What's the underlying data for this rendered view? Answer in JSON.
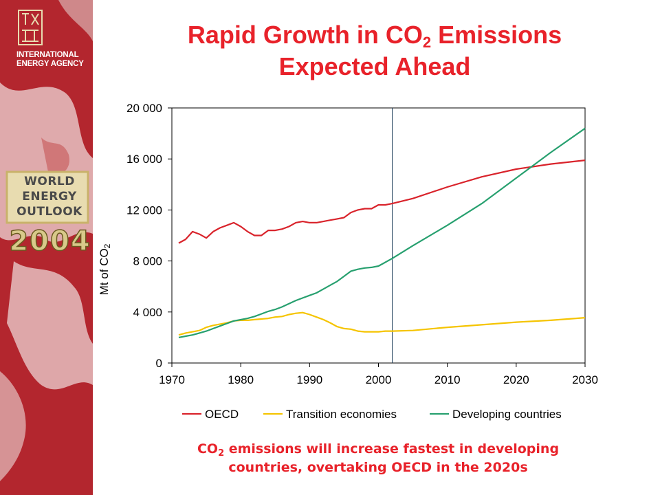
{
  "sidebar": {
    "agency_line1": "INTERNATIONAL",
    "agency_line2": "ENERGY AGENCY",
    "weo_line1": "WORLD",
    "weo_line2": "ENERGY",
    "weo_line3": "OUTLOOK",
    "weo_year": "2004",
    "colors": {
      "background": "#b3262e",
      "accent": "#e8dcb0"
    }
  },
  "title": {
    "line1_pre": "Rapid Growth in CO",
    "line1_sub": "2",
    "line1_post": " Emissions",
    "line2": "Expected Ahead"
  },
  "caption": {
    "line1_pre": "CO",
    "line1_sub": "2",
    "line1_post": " emissions will increase fastest in developing",
    "line2": "countries, overtaking OECD in the 2020s"
  },
  "chart_data": {
    "type": "line",
    "ylabel": "Mt of CO",
    "ylabel_sub": "2",
    "xlim": [
      1970,
      2030
    ],
    "ylim": [
      0,
      20000
    ],
    "x_ticks": [
      1970,
      1980,
      1990,
      2000,
      2010,
      2020,
      2030
    ],
    "x_tick_labels": [
      "1970",
      "1980",
      "1990",
      "2000",
      "2010",
      "2020",
      "2030"
    ],
    "y_ticks": [
      0,
      4000,
      8000,
      12000,
      16000,
      20000
    ],
    "y_tick_labels": [
      "0",
      "4 000",
      "8 000",
      "12 000",
      "16 000",
      "20 000"
    ],
    "reference_line_x": 2002,
    "grid": false,
    "legend_position": "bottom",
    "series": [
      {
        "name": "OECD",
        "color": "#d9232b",
        "x": [
          1971,
          1972,
          1973,
          1974,
          1975,
          1976,
          1977,
          1978,
          1979,
          1980,
          1981,
          1982,
          1983,
          1984,
          1985,
          1986,
          1987,
          1988,
          1989,
          1990,
          1991,
          1992,
          1993,
          1994,
          1995,
          1996,
          1997,
          1998,
          1999,
          2000,
          2001,
          2002,
          2005,
          2010,
          2015,
          2020,
          2025,
          2030
        ],
        "y": [
          9400,
          9700,
          10300,
          10100,
          9800,
          10300,
          10600,
          10800,
          11000,
          10700,
          10300,
          10000,
          10000,
          10400,
          10400,
          10500,
          10700,
          11000,
          11100,
          11000,
          11000,
          11100,
          11200,
          11300,
          11400,
          11800,
          12000,
          12100,
          12100,
          12400,
          12400,
          12500,
          12900,
          13800,
          14600,
          15200,
          15600,
          15900
        ]
      },
      {
        "name": "Transition economies",
        "color": "#f5c400",
        "x": [
          1971,
          1972,
          1973,
          1974,
          1975,
          1976,
          1977,
          1978,
          1979,
          1980,
          1981,
          1982,
          1983,
          1984,
          1985,
          1986,
          1987,
          1988,
          1989,
          1990,
          1991,
          1992,
          1993,
          1994,
          1995,
          1996,
          1997,
          1998,
          1999,
          2000,
          2001,
          2002,
          2005,
          2010,
          2015,
          2020,
          2025,
          2030
        ],
        "y": [
          2200,
          2350,
          2450,
          2550,
          2800,
          2950,
          3050,
          3150,
          3300,
          3350,
          3350,
          3400,
          3450,
          3500,
          3600,
          3650,
          3800,
          3900,
          3950,
          3800,
          3600,
          3400,
          3150,
          2850,
          2700,
          2650,
          2500,
          2450,
          2450,
          2450,
          2500,
          2500,
          2550,
          2800,
          3000,
          3200,
          3350,
          3550
        ]
      },
      {
        "name": "Developing countries",
        "color": "#27a06f",
        "x": [
          1971,
          1972,
          1973,
          1974,
          1975,
          1976,
          1977,
          1978,
          1979,
          1980,
          1981,
          1982,
          1983,
          1984,
          1985,
          1986,
          1987,
          1988,
          1989,
          1990,
          1991,
          1992,
          1993,
          1994,
          1995,
          1996,
          1997,
          1998,
          1999,
          2000,
          2001,
          2002,
          2005,
          2010,
          2015,
          2020,
          2025,
          2030
        ],
        "y": [
          2000,
          2100,
          2200,
          2350,
          2500,
          2700,
          2900,
          3100,
          3300,
          3400,
          3500,
          3650,
          3850,
          4050,
          4200,
          4400,
          4650,
          4900,
          5100,
          5300,
          5500,
          5800,
          6100,
          6400,
          6800,
          7200,
          7350,
          7450,
          7500,
          7600,
          7900,
          8200,
          9200,
          10800,
          12500,
          14500,
          16500,
          18400
        ]
      }
    ]
  }
}
